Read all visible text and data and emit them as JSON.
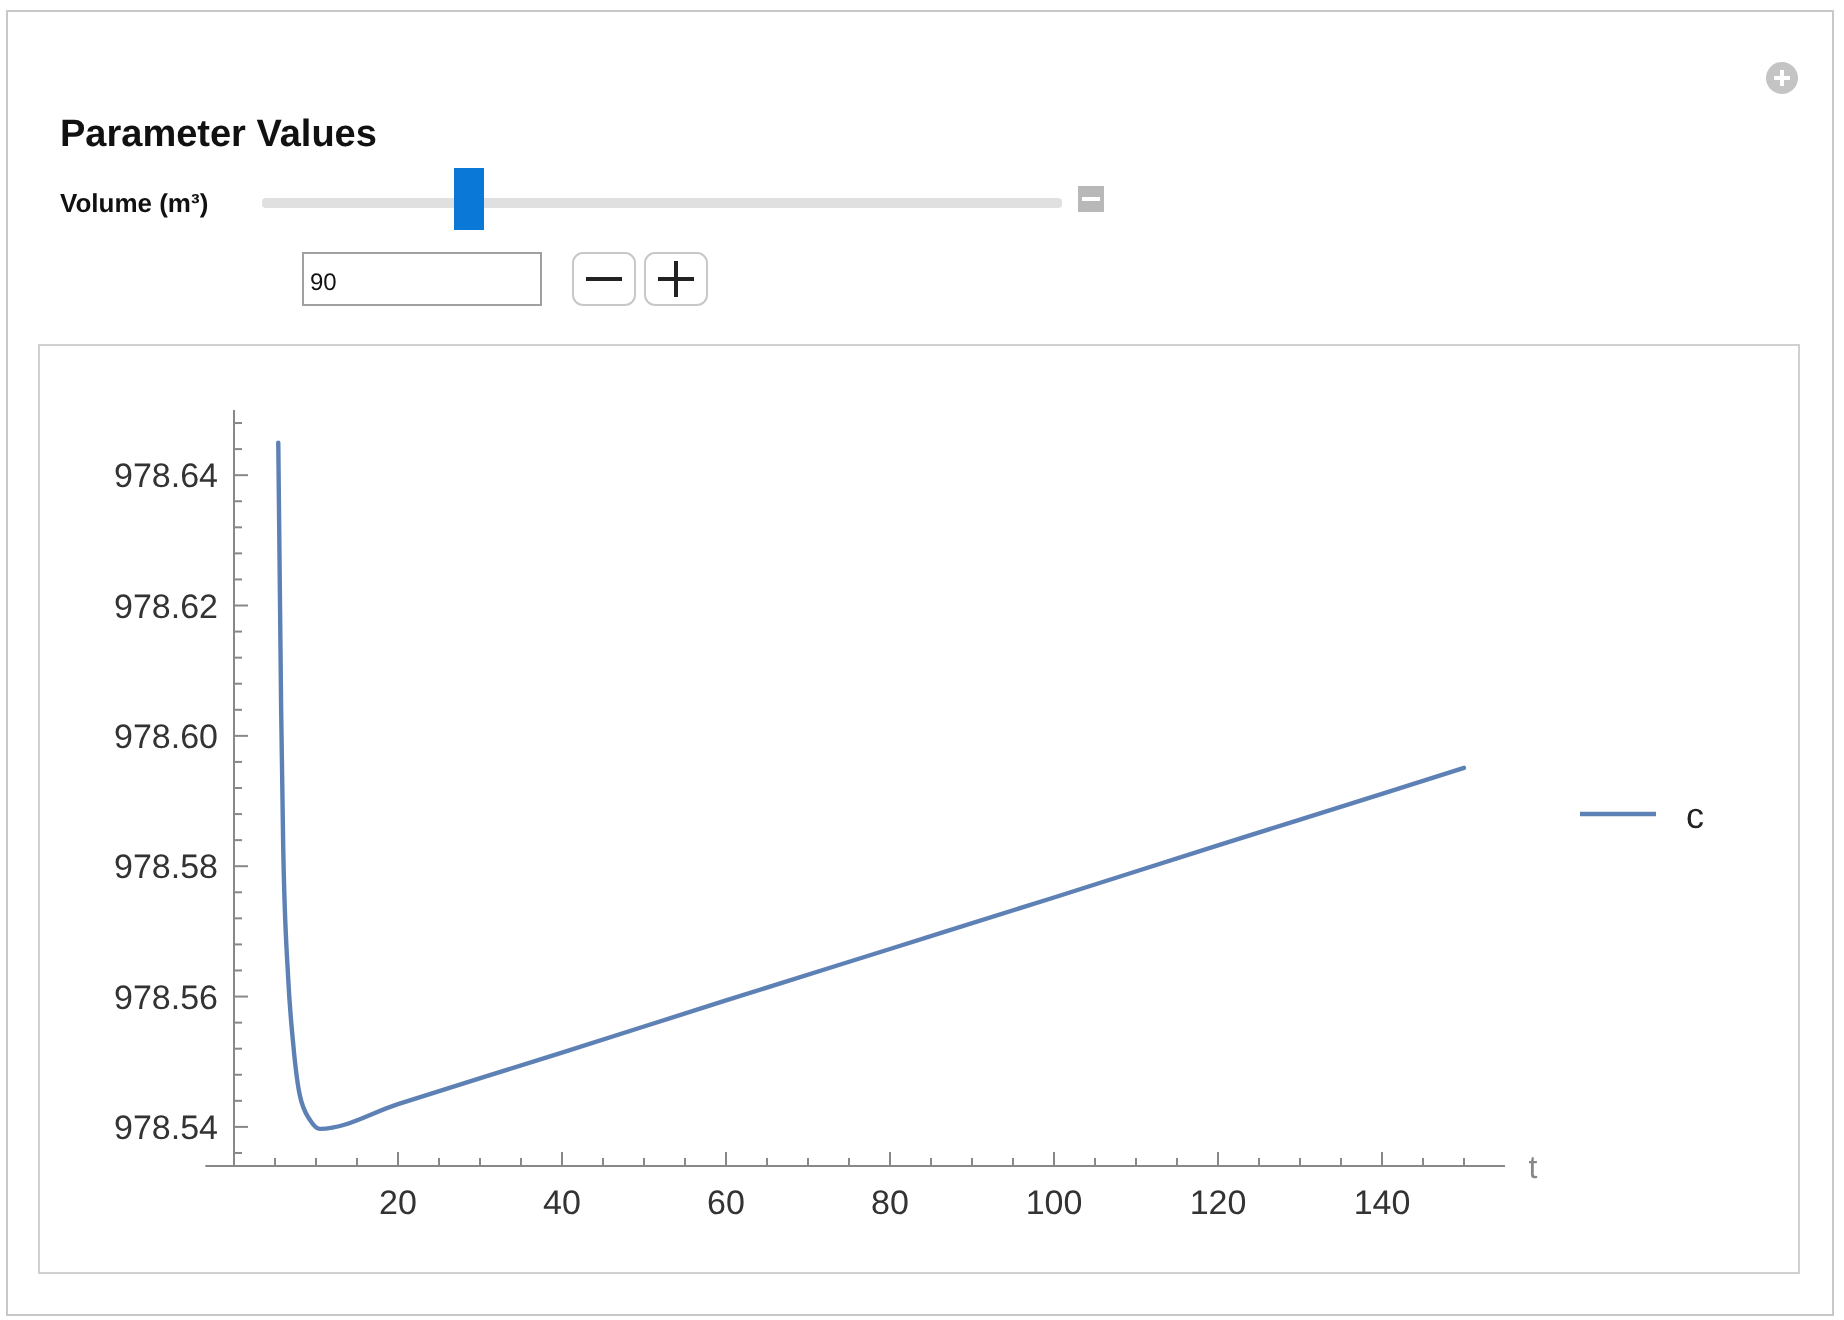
{
  "chart_data": {
    "type": "line",
    "title": "Parameter Values",
    "xlabel": "t",
    "annotations": [
      "Volume (m³)",
      "90"
    ],
    "x": [
      5.4,
      5.75,
      6.0,
      6.6,
      7.2,
      8.0,
      9.3,
      10.5,
      20,
      40,
      60,
      80,
      100,
      120,
      140,
      150
    ],
    "series": [
      {
        "name": "c",
        "color": "#5e81b5",
        "values": [
          978.645,
          978.604,
          978.583,
          978.563,
          978.553,
          978.545,
          978.541,
          978.5397,
          978.5435,
          978.5514,
          978.5594,
          978.5673,
          978.5752,
          978.5832,
          978.5911,
          978.5951
        ]
      }
    ],
    "xlim": [
      -3.5,
      155
    ],
    "ylim": [
      978.534,
      978.65
    ],
    "xticks": [
      {
        "value": 5,
        "label": null
      },
      {
        "value": 10,
        "label": null
      },
      {
        "value": 15,
        "label": null
      },
      20,
      {
        "value": 25,
        "label": null
      },
      {
        "value": 30,
        "label": null
      },
      {
        "value": 35,
        "label": null
      },
      40,
      {
        "value": 45,
        "label": null
      },
      {
        "value": 50,
        "label": null
      },
      {
        "value": 55,
        "label": null
      },
      60,
      {
        "value": 65,
        "label": null
      },
      {
        "value": 70,
        "label": null
      },
      {
        "value": 75,
        "label": null
      },
      80,
      {
        "value": 85,
        "label": null
      },
      {
        "value": 90,
        "label": null
      },
      {
        "value": 95,
        "label": null
      },
      100,
      {
        "value": 105,
        "label": null
      },
      {
        "value": 110,
        "label": null
      },
      {
        "value": 115,
        "label": null
      },
      120,
      {
        "value": 125,
        "label": null
      },
      {
        "value": 130,
        "label": null
      },
      {
        "value": 135,
        "label": null
      },
      140,
      {
        "value": 145,
        "label": null
      },
      {
        "value": 150,
        "label": null
      }
    ],
    "yticks": [
      {
        "value": 978.536,
        "label": null
      },
      978.54,
      {
        "value": 978.544,
        "label": null
      },
      {
        "value": 978.548,
        "label": null
      },
      {
        "value": 978.552,
        "label": null
      },
      {
        "value": 978.556,
        "label": null
      },
      {
        "value": 978.56,
        "label": "978.56"
      },
      {
        "value": 978.564,
        "label": null
      },
      {
        "value": 978.568,
        "label": null
      },
      {
        "value": 978.572,
        "label": null
      },
      {
        "value": 978.576,
        "label": null
      },
      978.58,
      {
        "value": 978.584,
        "label": null
      },
      {
        "value": 978.588,
        "label": null
      },
      {
        "value": 978.592,
        "label": null
      },
      {
        "value": 978.596,
        "label": null
      },
      {
        "value": 978.6,
        "label": "978.60"
      },
      {
        "value": 978.604,
        "label": null
      },
      {
        "value": 978.608,
        "label": null
      },
      {
        "value": 978.612,
        "label": null
      },
      {
        "value": 978.616,
        "label": null
      },
      978.62,
      {
        "value": 978.624,
        "label": null
      },
      {
        "value": 978.628,
        "label": null
      },
      {
        "value": 978.632,
        "label": null
      },
      {
        "value": 978.636,
        "label": null
      },
      978.64,
      {
        "value": 978.644,
        "label": null
      },
      {
        "value": 978.648,
        "label": null
      }
    ],
    "grid": false,
    "legend": "right",
    "marker": "none",
    "line_style": "solid"
  }
}
